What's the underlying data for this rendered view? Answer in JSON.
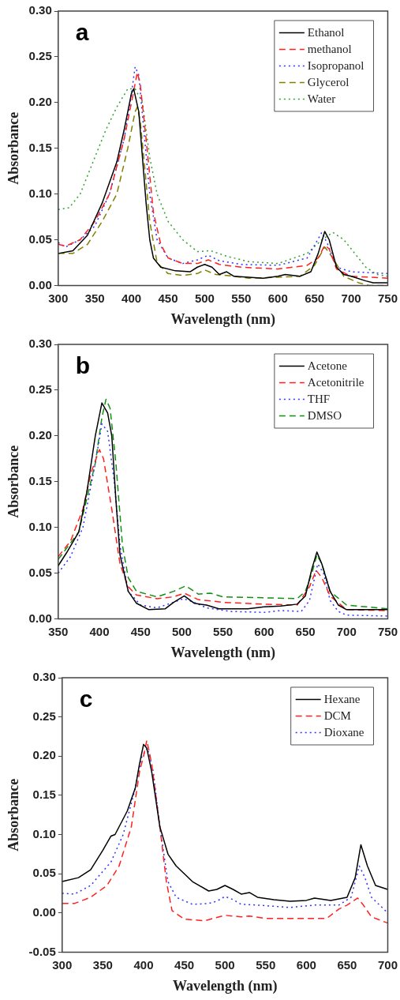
{
  "chart_data": [
    {
      "type": "line",
      "annotations": [
        "a"
      ],
      "xlabel": "Wavelength (nm)",
      "ylabel": "Absorbance",
      "legend": "top right",
      "xlim": [
        300,
        750
      ],
      "xticks": [
        300,
        350,
        400,
        450,
        500,
        550,
        600,
        650,
        700,
        750
      ],
      "ylim": [
        0,
        0.3
      ],
      "yticks": [
        {
          "value": 0,
          "label": "0.00"
        },
        {
          "value": 0.05,
          "label": "0.05"
        },
        {
          "value": 0.1,
          "label": "0.10"
        },
        {
          "value": 0.15,
          "label": "0.15"
        },
        {
          "value": 0.2,
          "label": "0.20"
        },
        {
          "value": 0.25,
          "label": "0.25"
        },
        {
          "value": 0.3,
          "label": "0.30"
        }
      ],
      "series": [
        {
          "name": "Ethanol",
          "color": "#000000",
          "line_style": "solid",
          "x": [
            300,
            320,
            340,
            360,
            380,
            390,
            400,
            403,
            410,
            415,
            420,
            425,
            430,
            440,
            460,
            480,
            490,
            500,
            510,
            520,
            530,
            540,
            560,
            580,
            600,
            610,
            630,
            645,
            655,
            664,
            670,
            680,
            690,
            700,
            720,
            730,
            750
          ],
          "values": [
            0.035,
            0.038,
            0.055,
            0.09,
            0.135,
            0.17,
            0.21,
            0.215,
            0.19,
            0.14,
            0.09,
            0.05,
            0.03,
            0.02,
            0.016,
            0.015,
            0.02,
            0.023,
            0.02,
            0.012,
            0.015,
            0.01,
            0.009,
            0.008,
            0.01,
            0.012,
            0.01,
            0.015,
            0.035,
            0.059,
            0.05,
            0.02,
            0.012,
            0.01,
            0.005,
            0.003,
            0.003
          ]
        },
        {
          "name": "methanol",
          "color": "#ff2020",
          "line_style": "dashed",
          "x": [
            300,
            310,
            330,
            350,
            370,
            390,
            400,
            408,
            412,
            420,
            430,
            440,
            450,
            470,
            490,
            505,
            520,
            550,
            600,
            640,
            655,
            664,
            670,
            680,
            700,
            750
          ],
          "values": [
            0.045,
            0.043,
            0.05,
            0.07,
            0.1,
            0.16,
            0.2,
            0.233,
            0.22,
            0.16,
            0.08,
            0.045,
            0.03,
            0.024,
            0.024,
            0.028,
            0.023,
            0.02,
            0.018,
            0.022,
            0.03,
            0.044,
            0.04,
            0.018,
            0.01,
            0.008
          ]
        },
        {
          "name": "Isopropanol",
          "color": "#3030ff",
          "line_style": "dotted",
          "x": [
            300,
            310,
            330,
            350,
            370,
            390,
            400,
            405,
            410,
            418,
            425,
            435,
            450,
            470,
            490,
            505,
            520,
            550,
            600,
            640,
            660,
            668,
            680,
            700,
            750
          ],
          "values": [
            0.047,
            0.042,
            0.05,
            0.065,
            0.1,
            0.16,
            0.21,
            0.239,
            0.23,
            0.16,
            0.1,
            0.05,
            0.03,
            0.024,
            0.028,
            0.033,
            0.027,
            0.023,
            0.022,
            0.03,
            0.058,
            0.045,
            0.02,
            0.015,
            0.013
          ]
        },
        {
          "name": "Glycerol",
          "color": "#808000",
          "line_style": "dashed",
          "x": [
            300,
            320,
            340,
            360,
            380,
            395,
            405,
            408,
            412,
            418,
            425,
            435,
            450,
            470,
            490,
            500,
            515,
            530,
            560,
            600,
            630,
            650,
            664,
            675,
            690,
            710,
            725,
            750
          ],
          "values": [
            0.035,
            0.035,
            0.045,
            0.07,
            0.1,
            0.15,
            0.19,
            0.195,
            0.18,
            0.13,
            0.07,
            0.025,
            0.013,
            0.011,
            0.013,
            0.017,
            0.012,
            0.011,
            0.008,
            0.009,
            0.01,
            0.022,
            0.042,
            0.03,
            0.01,
            0.003,
            0,
            0
          ]
        },
        {
          "name": "Water",
          "color": "#30a030",
          "line_style": "dotted",
          "x": [
            300,
            315,
            330,
            350,
            365,
            380,
            395,
            405,
            415,
            425,
            435,
            450,
            470,
            490,
            508,
            530,
            560,
            600,
            640,
            660,
            675,
            690,
            705,
            720,
            735,
            750
          ],
          "values": [
            0.083,
            0.085,
            0.1,
            0.14,
            0.17,
            0.195,
            0.215,
            0.215,
            0.2,
            0.14,
            0.1,
            0.07,
            0.05,
            0.037,
            0.038,
            0.032,
            0.026,
            0.024,
            0.035,
            0.05,
            0.058,
            0.05,
            0.035,
            0.02,
            0.012,
            0.01
          ]
        }
      ]
    },
    {
      "type": "line",
      "annotations": [
        "b"
      ],
      "xlabel": "Wavelength (nm)",
      "ylabel": "Absorbance",
      "legend": "top right",
      "xlim": [
        350,
        750
      ],
      "xticks": [
        350,
        400,
        450,
        500,
        550,
        600,
        650,
        700,
        750
      ],
      "ylim": [
        0,
        0.3
      ],
      "yticks": [
        {
          "value": 0,
          "label": "0.00"
        },
        {
          "value": 0.05,
          "label": "0.05"
        },
        {
          "value": 0.1,
          "label": "0.10"
        },
        {
          "value": 0.15,
          "label": "0.15"
        },
        {
          "value": 0.2,
          "label": "0.20"
        },
        {
          "value": 0.25,
          "label": "0.25"
        },
        {
          "value": 0.3,
          "label": "0.30"
        }
      ],
      "series": [
        {
          "name": "Acetone",
          "color": "#000000",
          "line_style": "solid",
          "x": [
            350,
            360,
            375,
            385,
            395,
            403,
            410,
            415,
            420,
            425,
            435,
            445,
            460,
            480,
            490,
            503,
            515,
            530,
            545,
            580,
            600,
            620,
            640,
            650,
            658,
            664,
            670,
            680,
            690,
            700,
            750
          ],
          "values": [
            0.058,
            0.072,
            0.095,
            0.14,
            0.2,
            0.236,
            0.225,
            0.2,
            0.13,
            0.07,
            0.03,
            0.017,
            0.01,
            0.011,
            0.018,
            0.025,
            0.017,
            0.015,
            0.011,
            0.011,
            0.013,
            0.014,
            0.016,
            0.025,
            0.055,
            0.073,
            0.06,
            0.03,
            0.015,
            0.01,
            0.01
          ]
        },
        {
          "name": "Acetonitrile",
          "color": "#ff2020",
          "line_style": "dashed",
          "x": [
            350,
            365,
            380,
            390,
            400,
            405,
            415,
            425,
            435,
            445,
            470,
            490,
            503,
            520,
            550,
            600,
            640,
            655,
            663,
            670,
            680,
            700,
            750
          ],
          "values": [
            0.068,
            0.085,
            0.12,
            0.16,
            0.185,
            0.175,
            0.12,
            0.06,
            0.035,
            0.026,
            0.022,
            0.024,
            0.028,
            0.021,
            0.018,
            0.016,
            0.015,
            0.035,
            0.053,
            0.045,
            0.025,
            0.01,
            0.009
          ]
        },
        {
          "name": "THF",
          "color": "#3030ff",
          "line_style": "dotted",
          "x": [
            350,
            365,
            380,
            395,
            403,
            410,
            418,
            425,
            435,
            450,
            470,
            490,
            502,
            515,
            530,
            560,
            600,
            620,
            645,
            655,
            665,
            672,
            680,
            690,
            700,
            750
          ],
          "values": [
            0.05,
            0.068,
            0.1,
            0.17,
            0.213,
            0.205,
            0.15,
            0.08,
            0.03,
            0.015,
            0.012,
            0.018,
            0.022,
            0.018,
            0.012,
            0.008,
            0.007,
            0.009,
            0.008,
            0.02,
            0.06,
            0.05,
            0.02,
            0.008,
            0.004,
            0.003
          ]
        },
        {
          "name": "DMSO",
          "color": "#109010",
          "line_style": "dashed",
          "x": [
            350,
            375,
            395,
            403,
            408,
            413,
            420,
            428,
            435,
            445,
            470,
            490,
            505,
            520,
            535,
            550,
            600,
            640,
            650,
            658,
            664,
            670,
            680,
            700,
            750
          ],
          "values": [
            0.065,
            0.095,
            0.17,
            0.22,
            0.24,
            0.23,
            0.17,
            0.08,
            0.045,
            0.03,
            0.024,
            0.03,
            0.036,
            0.027,
            0.028,
            0.024,
            0.023,
            0.022,
            0.03,
            0.05,
            0.07,
            0.06,
            0.03,
            0.015,
            0.011
          ]
        }
      ]
    },
    {
      "type": "line",
      "annotations": [
        "c"
      ],
      "xlabel": "Wavelength (nm)",
      "ylabel": "Absorbance",
      "legend": "top right",
      "xlim": [
        300,
        700
      ],
      "xticks": [
        300,
        350,
        400,
        450,
        500,
        550,
        600,
        650,
        700
      ],
      "ylim": [
        -0.05,
        0.3
      ],
      "yticks": [
        {
          "value": -0.05,
          "label": "-0.05"
        },
        {
          "value": 0,
          "label": "0.00"
        },
        {
          "value": 0.05,
          "label": "0.05"
        },
        {
          "value": 0.1,
          "label": "0.10"
        },
        {
          "value": 0.15,
          "label": "0.15"
        },
        {
          "value": 0.2,
          "label": "0.20"
        },
        {
          "value": 0.25,
          "label": "0.25"
        },
        {
          "value": 0.3,
          "label": "0.30"
        }
      ],
      "series": [
        {
          "name": "Hexane",
          "color": "#000000",
          "line_style": "solid",
          "x": [
            300,
            320,
            335,
            350,
            360,
            365,
            380,
            390,
            395,
            400,
            404,
            410,
            420,
            430,
            440,
            460,
            480,
            490,
            500,
            510,
            520,
            530,
            540,
            560,
            580,
            600,
            610,
            630,
            650,
            660,
            667,
            675,
            685,
            700
          ],
          "values": [
            0.04,
            0.045,
            0.055,
            0.08,
            0.098,
            0.1,
            0.13,
            0.16,
            0.19,
            0.215,
            0.21,
            0.18,
            0.11,
            0.075,
            0.06,
            0.04,
            0.028,
            0.03,
            0.035,
            0.03,
            0.024,
            0.026,
            0.02,
            0.017,
            0.015,
            0.016,
            0.019,
            0.016,
            0.02,
            0.045,
            0.087,
            0.06,
            0.035,
            0.03
          ]
        },
        {
          "name": "DCM",
          "color": "#ff2020",
          "line_style": "dashed",
          "x": [
            300,
            315,
            335,
            355,
            370,
            385,
            395,
            400,
            404,
            410,
            420,
            428,
            435,
            450,
            475,
            500,
            520,
            530,
            550,
            600,
            625,
            640,
            650,
            663,
            670,
            680,
            700
          ],
          "values": [
            0.012,
            0.012,
            0.02,
            0.035,
            0.06,
            0.11,
            0.18,
            0.2,
            0.22,
            0.19,
            0.11,
            0.04,
            0.003,
            -0.008,
            -0.01,
            -0.003,
            -0.005,
            -0.004,
            -0.007,
            -0.007,
            -0.007,
            0.005,
            0.01,
            0.019,
            0.01,
            -0.005,
            -0.013
          ]
        },
        {
          "name": "Dioxane",
          "color": "#3030ff",
          "line_style": "dotted",
          "x": [
            300,
            315,
            335,
            360,
            375,
            390,
            398,
            405,
            412,
            420,
            430,
            440,
            460,
            480,
            490,
            500,
            510,
            520,
            540,
            580,
            610,
            640,
            655,
            665,
            672,
            680,
            700
          ],
          "values": [
            0.025,
            0.024,
            0.035,
            0.065,
            0.1,
            0.16,
            0.2,
            0.21,
            0.18,
            0.11,
            0.04,
            0.02,
            0.011,
            0.012,
            0.015,
            0.021,
            0.017,
            0.011,
            0.01,
            0.007,
            0.01,
            0.01,
            0.02,
            0.06,
            0.045,
            0.02,
            0
          ]
        }
      ]
    }
  ]
}
